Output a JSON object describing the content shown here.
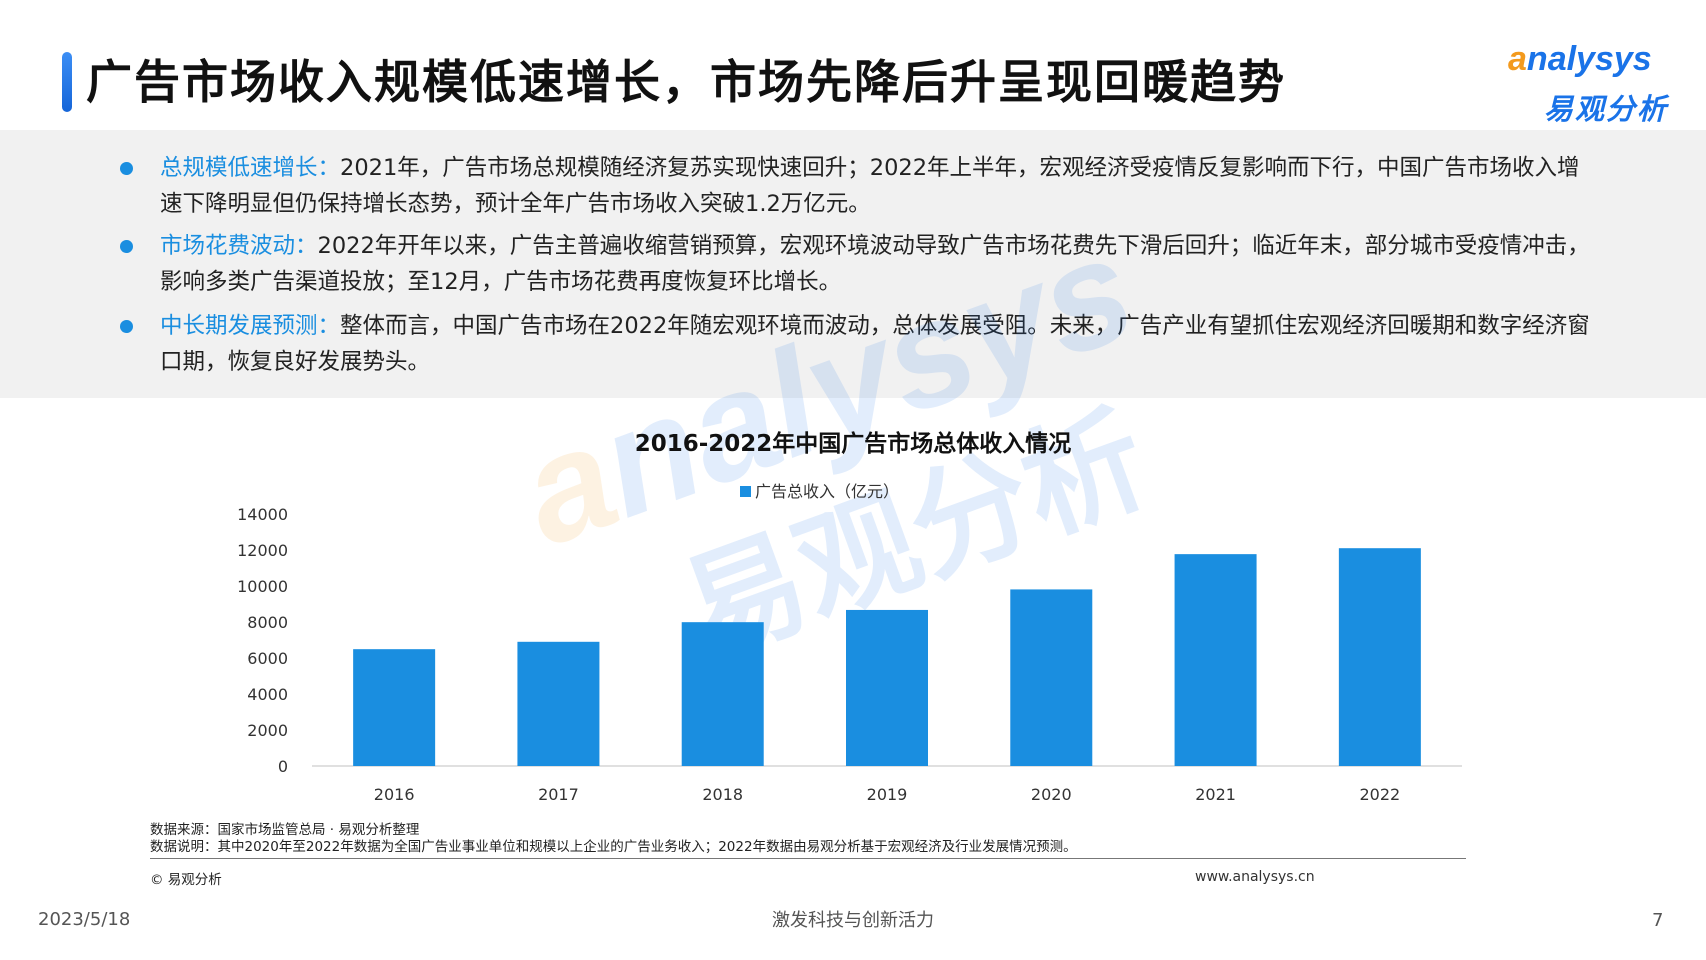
{
  "header": {
    "title": "广告市场收入规模低速增长，市场先降后升呈现回暖趋势",
    "logo_en": "nalysys",
    "logo_mark": "a",
    "logo_cn": "易观分析"
  },
  "summary": [
    {
      "head": "总规模低速增长：",
      "body": "2021年，广告市场总规模随经济复苏实现快速回升；2022年上半年，宏观经济受疫情反复影响而下行，中国广告市场收入增速下降明显但仍保持增长态势，预计全年广告市场收入突破1.2万亿元。"
    },
    {
      "head": "市场花费波动：",
      "body": "2022年开年以来，广告主普遍收缩营销预算，宏观环境波动导致广告市场花费先下滑后回升；临近年末，部分城市受疫情冲击，影响多类广告渠道投放；至12月，广告市场花费再度恢复环比增长。"
    },
    {
      "head": "中长期发展预测：",
      "body": "整体而言，中国广告市场在2022年随宏观环境而波动，总体发展受阻。未来，广告产业有望抓住宏观经济回暖期和数字经济窗口期，恢复良好发展势头。"
    }
  ],
  "chart_data": {
    "type": "bar",
    "title": "2016-2022年中国广告市场总体收入情况",
    "categories": [
      "2016",
      "2017",
      "2018",
      "2019",
      "2020",
      "2021",
      "2022"
    ],
    "series": [
      {
        "name": "广告总收入（亿元）",
        "values": [
          6490,
          6900,
          7990,
          8670,
          9810,
          11770,
          12100
        ],
        "color": "#1a8ee0"
      }
    ],
    "ylim": [
      0,
      14000
    ],
    "yticks": [
      "0",
      "2000",
      "4000",
      "6000",
      "8000",
      "10000",
      "12000",
      "14000"
    ],
    "legend_position": "top-center",
    "grid": false
  },
  "notes": {
    "source": "数据来源：国家市场监管总局 · 易观分析整理",
    "explanation": "数据说明：其中2020年至2022年数据为全国广告业事业单位和规模以上企业的广告业务收入；2022年数据由易观分析基于宏观经济及行业发展情况预测。"
  },
  "footer": {
    "copyright": "© 易观分析",
    "website": "www.analysys.cn",
    "date": "2023/5/18",
    "slogan": "激发科技与创新活力",
    "page": "7"
  },
  "colors": {
    "accent": "#1a8ee0",
    "brand_orange": "#f39a1e",
    "brand_blue": "#1a73e8"
  }
}
